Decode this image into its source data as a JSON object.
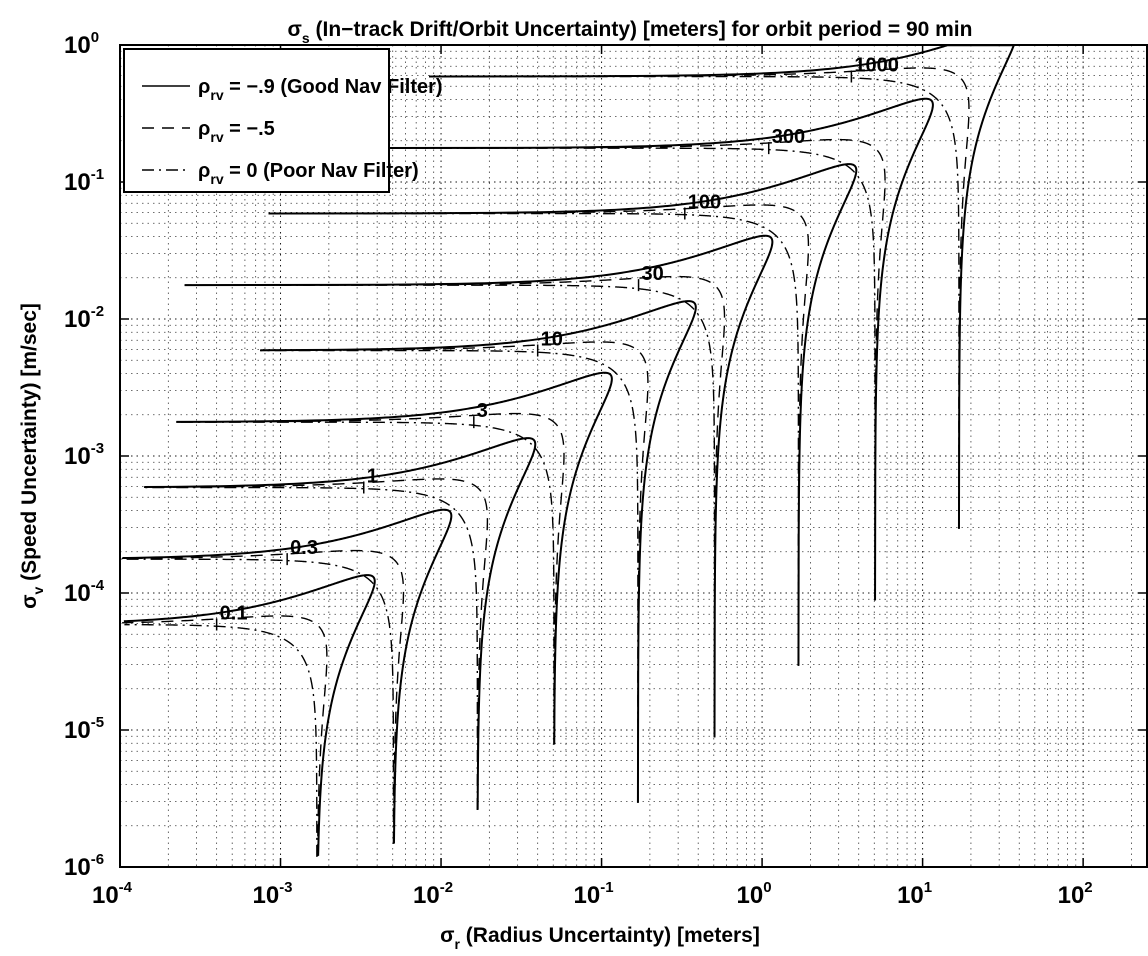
{
  "chart_data": {
    "type": "line",
    "title": {
      "symbol": "σ",
      "subscript": "s",
      "text": " (In−track Drift/Orbit Uncertainty) [meters] for orbit period = 90 min"
    },
    "xlabel": {
      "symbol": "σ",
      "subscript": "r",
      "text": " (Radius Uncertainty) [meters]"
    },
    "ylabel": {
      "symbol": "σ",
      "subscript": "v",
      "text": " (Speed Uncertainty) [m/sec]"
    },
    "x_scale": "log",
    "y_scale": "log",
    "xlim": [
      0.0001,
      250
    ],
    "ylim": [
      1e-06,
      1
    ],
    "grid": true,
    "x_ticks": [
      {
        "base": "10",
        "exp": "-4"
      },
      {
        "base": "10",
        "exp": "-3"
      },
      {
        "base": "10",
        "exp": "-2"
      },
      {
        "base": "10",
        "exp": "-1"
      },
      {
        "base": "10",
        "exp": "0"
      },
      {
        "base": "10",
        "exp": "1"
      },
      {
        "base": "10",
        "exp": "2"
      }
    ],
    "y_ticks": [
      {
        "base": "10",
        "exp": "-6"
      },
      {
        "base": "10",
        "exp": "-5"
      },
      {
        "base": "10",
        "exp": "-4"
      },
      {
        "base": "10",
        "exp": "-3"
      },
      {
        "base": "10",
        "exp": "-2"
      },
      {
        "base": "10",
        "exp": "-1"
      },
      {
        "base": "10",
        "exp": "0"
      }
    ],
    "legend": {
      "placement": "top-left",
      "entries": [
        {
          "symbol": "ρ",
          "subscript": "rv",
          "text": " = −.9 (Good Nav Filter)",
          "style": "solid"
        },
        {
          "symbol": "ρ",
          "subscript": "rv",
          "text": " = −.5",
          "style": "dashed"
        },
        {
          "symbol": "ρ",
          "subscript": "rv",
          "text": " = 0 (Poor Nav Filter)",
          "style": "dashdot"
        }
      ]
    },
    "contour_levels": [
      {
        "label": "0.1",
        "value": 0.1,
        "label_x": 0.0004
      },
      {
        "label": "0.3",
        "value": 0.3,
        "label_x": 0.0011
      },
      {
        "label": "1",
        "value": 1,
        "label_x": 0.0033
      },
      {
        "label": "3",
        "value": 3,
        "label_x": 0.016
      },
      {
        "label": "10",
        "value": 10,
        "label_x": 0.04
      },
      {
        "label": "30",
        "value": 30,
        "label_x": 0.17
      },
      {
        "label": "100",
        "value": 100,
        "label_x": 0.33
      },
      {
        "label": "300",
        "value": 300,
        "label_x": 1.1
      },
      {
        "label": "1000",
        "value": 1000,
        "label_x": 3.6
      }
    ],
    "series": [
      {
        "name": "ρrv = −.9 (Good Nav Filter)",
        "rho": -0.9,
        "style": "solid"
      },
      {
        "name": "ρrv = −.5",
        "rho": -0.5,
        "style": "dashed"
      },
      {
        "name": "ρrv = 0 (Poor Nav Filter)",
        "rho": 0,
        "style": "dashdot"
      }
    ],
    "orbit_period_min": 90
  }
}
